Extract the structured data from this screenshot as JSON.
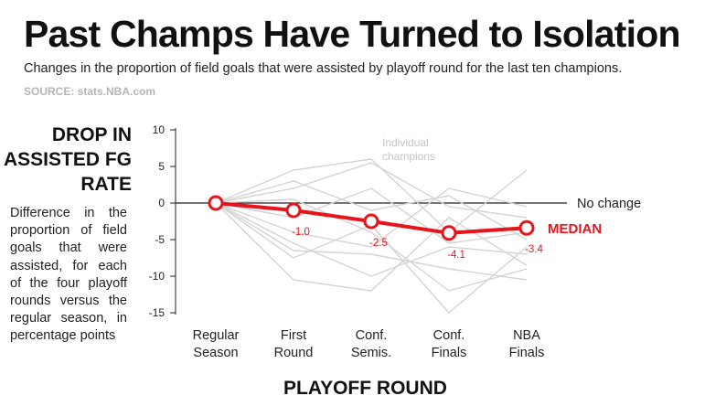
{
  "header": {
    "title": "Past Champs Have Turned to Isolation",
    "subtitle": "Changes in the proportion of field goals that were assisted by playoff round for the last ten champions.",
    "source": "SOURCE: stats.NBA.com"
  },
  "y_axis": {
    "title": "DROP IN ASSISTED FG RATE",
    "description": "Difference in the proportion of field goals that were assisted, for each of the four playoff rounds versus the regular season, in percentage points"
  },
  "x_axis": {
    "title": "PLAYOFF ROUND"
  },
  "annotations": {
    "no_change": "No change",
    "median": "MEDIAN",
    "individual": "Individual champions"
  },
  "colors": {
    "median": "#e8141c",
    "individual": "#d4d4d4",
    "text": "#111111"
  },
  "chart_data": {
    "type": "line",
    "title": "Past Champs Have Turned to Isolation",
    "xlabel": "PLAYOFF ROUND",
    "ylabel": "DROP IN ASSISTED FG RATE",
    "ylim": [
      -15,
      10
    ],
    "yticks": [
      10,
      5,
      0,
      -5,
      -10,
      -15
    ],
    "categories": [
      [
        "Regular",
        "Season"
      ],
      [
        "First",
        "Round"
      ],
      [
        "Conf.",
        "Semis."
      ],
      [
        "Conf.",
        "Finals"
      ],
      [
        "NBA",
        "Finals"
      ]
    ],
    "median": {
      "name": "MEDIAN",
      "values": [
        0,
        -1.0,
        -2.5,
        -4.1,
        -3.4
      ],
      "labels": [
        "",
        "-1.0",
        "-2.5",
        "-4.1",
        "-3.4"
      ]
    },
    "series": [
      {
        "name": "champion-1",
        "values": [
          0,
          4.5,
          6.0,
          -4.0,
          4.5
        ]
      },
      {
        "name": "champion-2",
        "values": [
          0,
          3.0,
          -1.0,
          1.0,
          -5.0
        ]
      },
      {
        "name": "champion-3",
        "values": [
          0,
          2.0,
          5.5,
          -0.5,
          -2.0
        ]
      },
      {
        "name": "champion-4",
        "values": [
          0,
          -2.0,
          2.0,
          -5.5,
          -4.0
        ]
      },
      {
        "name": "champion-5",
        "values": [
          0,
          -4.0,
          -6.0,
          2.0,
          -0.5
        ]
      },
      {
        "name": "champion-6",
        "values": [
          0,
          0.5,
          -4.0,
          -12.0,
          -9.0
        ]
      },
      {
        "name": "champion-7",
        "values": [
          0,
          -5.5,
          -10.0,
          -6.0,
          -7.0
        ]
      },
      {
        "name": "champion-8",
        "values": [
          0,
          -6.5,
          -7.0,
          -9.0,
          -10.5
        ]
      },
      {
        "name": "champion-9",
        "values": [
          0,
          -7.5,
          -3.0,
          -15.0,
          -6.0
        ]
      },
      {
        "name": "champion-10",
        "values": [
          0,
          -10.5,
          -12.0,
          -2.0,
          -8.5
        ]
      }
    ]
  }
}
